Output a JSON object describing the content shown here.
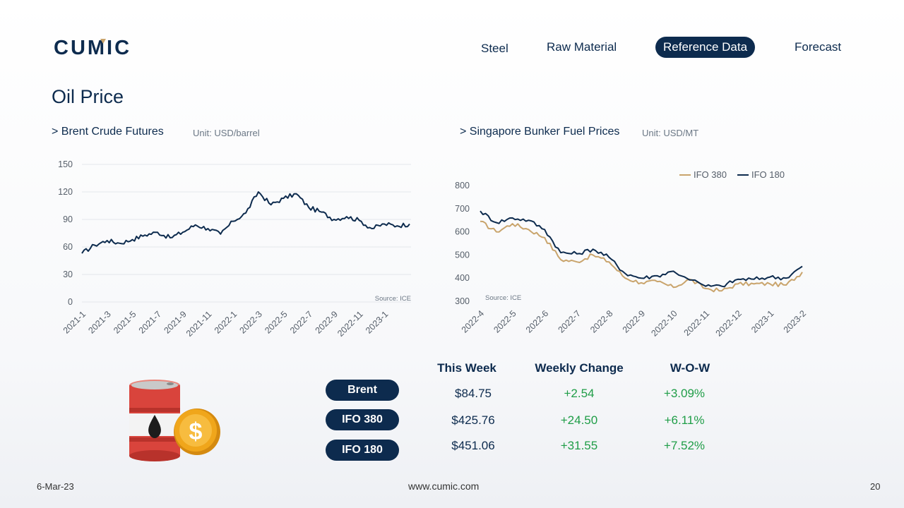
{
  "header": {
    "logo_text": "CUMIC",
    "nav": [
      {
        "label": "Steel",
        "active": false
      },
      {
        "label": "Raw Material",
        "active": false
      },
      {
        "label": "Reference Data",
        "active": true
      },
      {
        "label": "Forecast",
        "active": false
      }
    ]
  },
  "page_title": "Oil Price",
  "chart_data": [
    {
      "type": "line",
      "title": "> Brent Crude Futures",
      "unit": "Unit: USD/barrel",
      "source": "Source: ICE",
      "xlabel": "",
      "ylabel": "",
      "ylim": [
        0,
        150
      ],
      "yticks": [
        0,
        30,
        60,
        90,
        120,
        150
      ],
      "grid": true,
      "legend": "none",
      "categories": [
        "2021-1",
        "2021-3",
        "2021-5",
        "2021-7",
        "2021-9",
        "2021-11",
        "2022-1",
        "2022-3",
        "2022-5",
        "2022-7",
        "2022-9",
        "2022-11",
        "2023-1"
      ],
      "series": [
        {
          "color": "#0d2b4e",
          "x": [
            "2021-1",
            "2021-2",
            "2021-3",
            "2021-4",
            "2021-5",
            "2021-6",
            "2021-7",
            "2021-8",
            "2021-9",
            "2021-10",
            "2021-11",
            "2021-12",
            "2022-1",
            "2022-2",
            "2022-3",
            "2022-4",
            "2022-5",
            "2022-6",
            "2022-7",
            "2022-8",
            "2022-9",
            "2022-10",
            "2022-11",
            "2022-12",
            "2023-1",
            "2023-2",
            "2023-3"
          ],
          "values": [
            53,
            62,
            67,
            64,
            68,
            73,
            76,
            70,
            76,
            84,
            80,
            74,
            88,
            97,
            120,
            106,
            113,
            118,
            103,
            98,
            90,
            93,
            89,
            80,
            85,
            83,
            85
          ]
        }
      ]
    },
    {
      "type": "line",
      "title": "> Singapore Bunker Fuel Prices",
      "unit": "Unit: USD/MT",
      "source": "Source: ICE",
      "xlabel": "",
      "ylabel": "",
      "ylim": [
        300,
        800
      ],
      "yticks": [
        300,
        400,
        500,
        600,
        700,
        800
      ],
      "grid": false,
      "legend": "top-right",
      "categories": [
        "2022-4",
        "2022-5",
        "2022-6",
        "2022-7",
        "2022-8",
        "2022-9",
        "2022-10",
        "2022-11",
        "2022-12",
        "2023-1",
        "2023-2"
      ],
      "series": [
        {
          "name": "IFO 380",
          "color": "#c9a46c",
          "x": [
            "2022-4",
            "2022-4.5",
            "2022-5",
            "2022-5.5",
            "2022-6",
            "2022-6.5",
            "2022-7",
            "2022-7.5",
            "2022-8",
            "2022-8.5",
            "2022-9",
            "2022-9.5",
            "2022-10",
            "2022-10.5",
            "2022-11",
            "2022-11.5",
            "2022-12",
            "2022-12.5",
            "2023-1",
            "2023-1.5",
            "2023-2"
          ],
          "values": [
            645,
            600,
            635,
            610,
            575,
            480,
            470,
            500,
            470,
            400,
            380,
            385,
            360,
            395,
            355,
            345,
            375,
            375,
            375,
            370,
            426
          ]
        },
        {
          "name": "IFO 180",
          "color": "#0d2b4e",
          "x": [
            "2022-4",
            "2022-4.5",
            "2022-5",
            "2022-5.5",
            "2022-6",
            "2022-6.5",
            "2022-7",
            "2022-7.5",
            "2022-8",
            "2022-8.5",
            "2022-9",
            "2022-9.5",
            "2022-10",
            "2022-11",
            "2022-11.5",
            "2022-12",
            "2022-12.5",
            "2023-1",
            "2023-1.5",
            "2023-2"
          ],
          "values": [
            690,
            640,
            660,
            650,
            610,
            510,
            505,
            525,
            490,
            420,
            400,
            410,
            430,
            365,
            365,
            395,
            395,
            405,
            400,
            451
          ]
        }
      ]
    }
  ],
  "table": {
    "headers": [
      "This Week",
      "Weekly Change",
      "W-O-W"
    ],
    "rows": [
      {
        "name": "Brent",
        "this_week": "$84.75",
        "weekly_change": "+2.54",
        "wow": "+3.09%"
      },
      {
        "name": "IFO 380",
        "this_week": "$425.76",
        "weekly_change": "+24.50",
        "wow": "+6.11%"
      },
      {
        "name": "IFO 180",
        "this_week": "$451.06",
        "weekly_change": "+31.55",
        "wow": "+7.52%"
      }
    ]
  },
  "colors": {
    "navy": "#0d2b4e",
    "gold": "#c9a46c",
    "positive": "#1f9d47",
    "barrel_red": "#d9443c",
    "coin_gold": "#f0a61b"
  },
  "footer": {
    "date": "6-Mar-23",
    "website": "www.cumic.com",
    "page": "20"
  }
}
